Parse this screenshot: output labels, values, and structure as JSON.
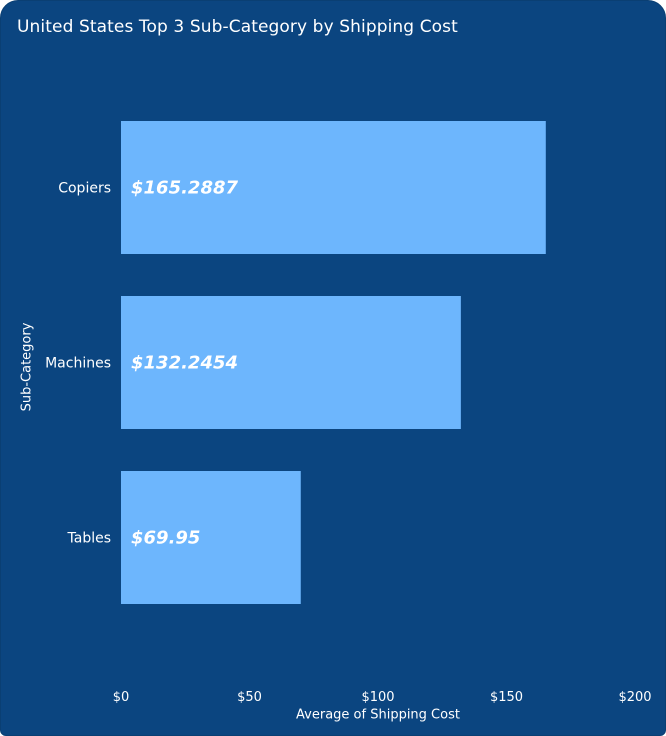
{
  "chart_data": {
    "type": "bar",
    "orientation": "horizontal",
    "title": "United States Top 3 Sub-Category by Shipping Cost",
    "xlabel": "Average of Shipping Cost",
    "ylabel": "Sub-Category",
    "categories": [
      "Copiers",
      "Machines",
      "Tables"
    ],
    "values": [
      165.2887,
      132.2454,
      69.95
    ],
    "data_labels": [
      "$165.2887",
      "$132.2454",
      "$69.95"
    ],
    "xlim": [
      0,
      200
    ],
    "xticks": [
      0,
      50,
      100,
      150,
      200
    ],
    "xtick_labels": [
      "$0",
      "$50",
      "$100",
      "$150",
      "$200"
    ],
    "grid": false,
    "legend": "none",
    "colors": {
      "background": "#0b4580",
      "bar": "#6db6fd",
      "text": "#ffffff"
    }
  }
}
